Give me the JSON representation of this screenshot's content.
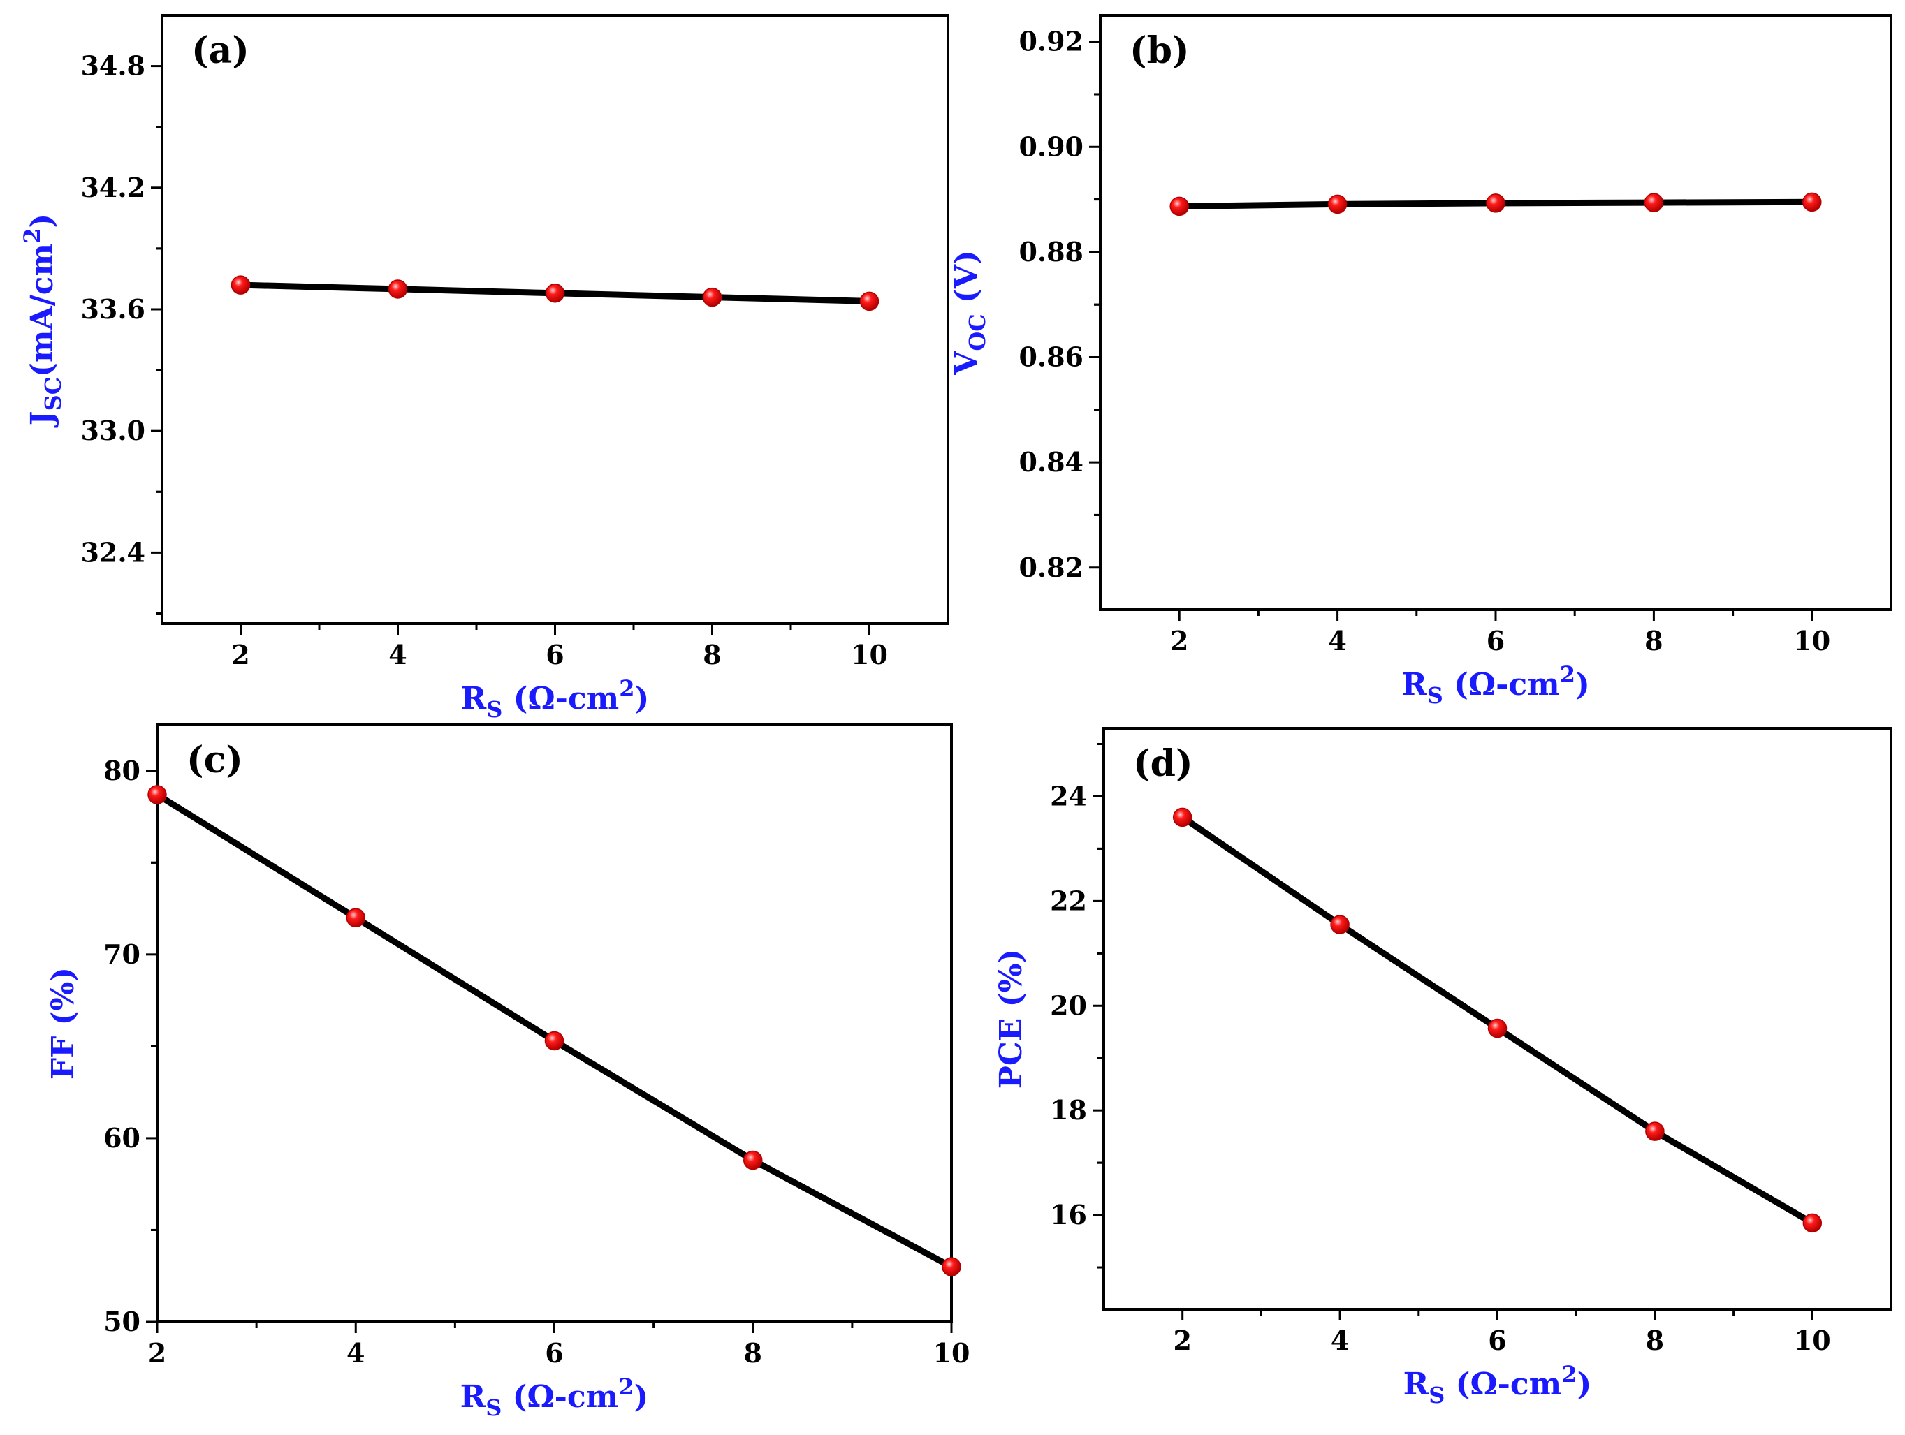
{
  "figure": {
    "colors": {
      "axis": "#000000",
      "line": "#000000",
      "marker": "#ff1a1a",
      "marker_edge": "#b30000",
      "label": "#1a1aff"
    }
  },
  "chart_data": [
    {
      "type": "line",
      "panel_label": "(a)",
      "x": [
        2,
        4,
        6,
        8,
        10
      ],
      "series": [
        {
          "name": "JSC",
          "values": [
            33.72,
            33.7,
            33.68,
            33.66,
            33.64
          ]
        }
      ],
      "xlim": [
        1,
        11
      ],
      "ylim": [
        32.05,
        35.05
      ],
      "xticks": [
        "2",
        "4",
        "6",
        "8",
        "10"
      ],
      "yticks": [
        "32.4",
        "33.0",
        "33.6",
        "34.2",
        "34.8"
      ],
      "xlabel": {
        "main": "R",
        "sub": "S",
        "rest": " (Ω-cm",
        "sup": "2",
        "close": ")"
      },
      "ylabel": {
        "main": "J",
        "sub": "SC",
        "rest": "(mA/cm",
        "sup": "2",
        "close": ")"
      }
    },
    {
      "type": "line",
      "panel_label": "(b)",
      "x": [
        2,
        4,
        6,
        8,
        10
      ],
      "series": [
        {
          "name": "VOC",
          "values": [
            0.8887,
            0.8891,
            0.8893,
            0.8894,
            0.8895
          ]
        }
      ],
      "xlim": [
        1,
        11
      ],
      "ylim": [
        0.812,
        0.925
      ],
      "xticks": [
        "2",
        "4",
        "6",
        "8",
        "10"
      ],
      "yticks": [
        "0.82",
        "0.84",
        "0.86",
        "0.88",
        "0.90",
        "0.92"
      ],
      "xlabel": {
        "main": "R",
        "sub": "S",
        "rest": " (Ω-cm",
        "sup": "2",
        "close": ")"
      },
      "ylabel": {
        "main": "V",
        "sub": "OC",
        "rest": " (V)",
        "sup": "",
        "close": ""
      }
    },
    {
      "type": "line",
      "panel_label": "(c)",
      "x": [
        2,
        4,
        6,
        8,
        10
      ],
      "series": [
        {
          "name": "FF",
          "values": [
            78.7,
            72.0,
            65.3,
            58.8,
            53.0
          ]
        }
      ],
      "xlim": [
        2,
        10
      ],
      "ylim": [
        50,
        82.5
      ],
      "xticks": [
        "2",
        "4",
        "6",
        "8",
        "10"
      ],
      "yticks": [
        "50",
        "60",
        "70",
        "80"
      ],
      "xlabel": {
        "main": "R",
        "sub": "S",
        "rest": " (Ω-cm",
        "sup": "2",
        "close": ")"
      },
      "ylabel": {
        "main": "FF (%)",
        "sub": "",
        "rest": "",
        "sup": "",
        "close": ""
      }
    },
    {
      "type": "line",
      "panel_label": "(d)",
      "x": [
        2,
        4,
        6,
        8,
        10
      ],
      "series": [
        {
          "name": "PCE",
          "values": [
            23.6,
            21.55,
            19.57,
            17.6,
            15.85
          ]
        }
      ],
      "xlim": [
        1,
        11
      ],
      "ylim": [
        14.2,
        25.3
      ],
      "xticks": [
        "2",
        "4",
        "6",
        "8",
        "10"
      ],
      "yticks": [
        "16",
        "18",
        "20",
        "22",
        "24"
      ],
      "xlabel": {
        "main": "R",
        "sub": "S",
        "rest": " (Ω-cm",
        "sup": "2",
        "close": ")"
      },
      "ylabel": {
        "main": "PCE (%)",
        "sub": "",
        "rest": "",
        "sup": "",
        "close": ""
      }
    }
  ]
}
